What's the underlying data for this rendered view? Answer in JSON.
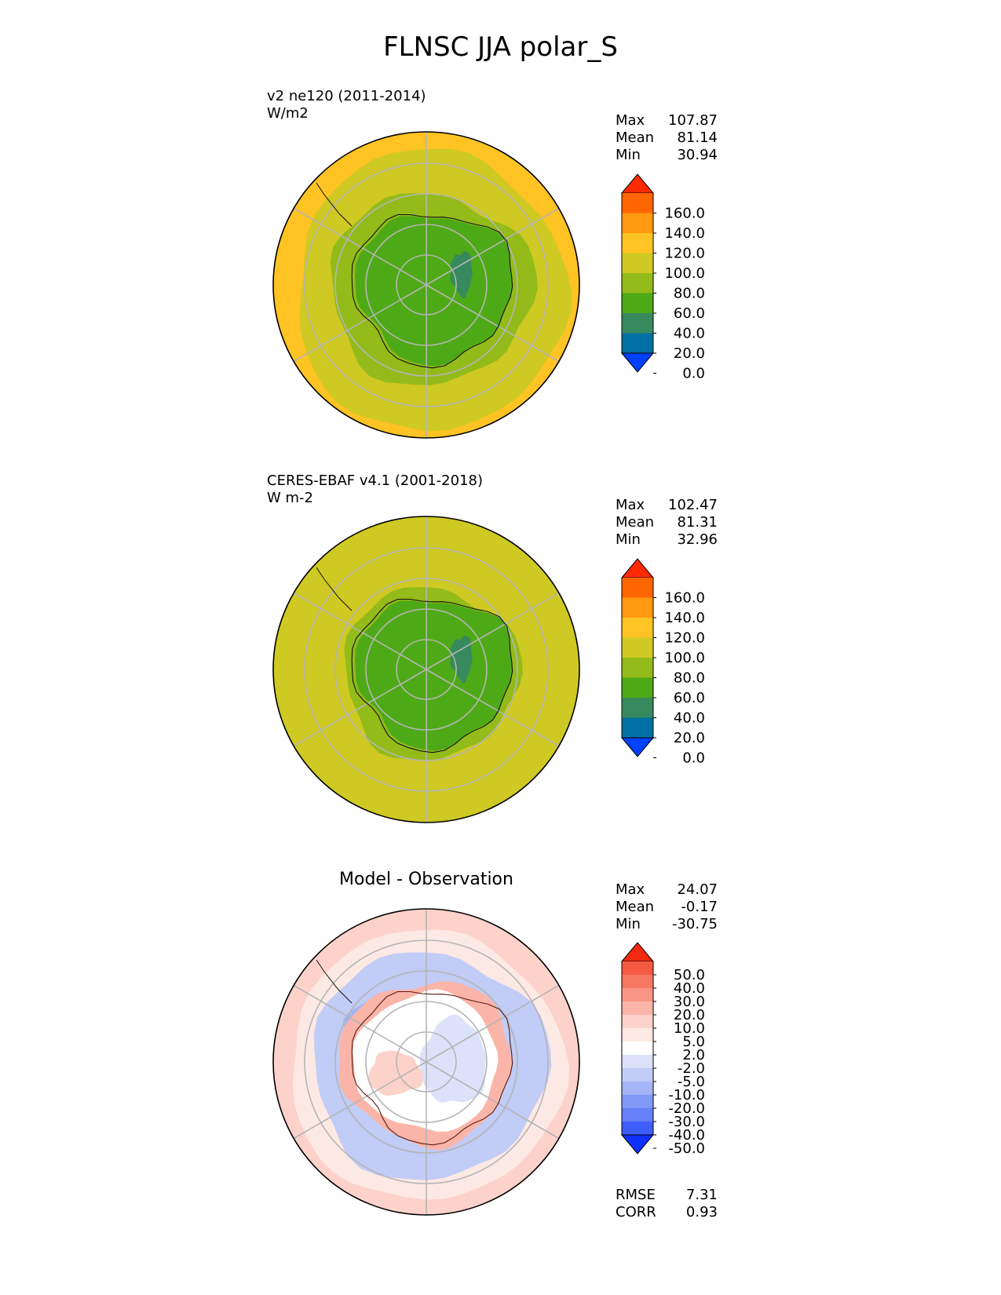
{
  "title": "FLNSC JJA polar_S",
  "panels": [
    {
      "id": "test",
      "title_line1": "v2 ne120 (2011-2014)",
      "title_line2": "W/m2",
      "stats": [
        {
          "label": "Max",
          "value": "107.87"
        },
        {
          "label": "Mean",
          "value": "81.14"
        },
        {
          "label": "Min",
          "value": "30.94"
        }
      ]
    },
    {
      "id": "ref",
      "title_line1": "CERES-EBAF v4.1 (2001-2018)",
      "title_line2": "W m-2",
      "stats": [
        {
          "label": "Max",
          "value": "102.47"
        },
        {
          "label": "Mean",
          "value": "81.31"
        },
        {
          "label": "Min",
          "value": "32.96"
        }
      ]
    },
    {
      "id": "diff",
      "title_center": "Model - Observation",
      "stats": [
        {
          "label": "Max",
          "value": "24.07"
        },
        {
          "label": "Mean",
          "value": "-0.17"
        },
        {
          "label": "Min",
          "value": "-30.75"
        }
      ],
      "extra_stats": [
        {
          "label": "RMSE",
          "value": "7.31"
        },
        {
          "label": "CORR",
          "value": "0.93"
        }
      ]
    }
  ],
  "chart_data": [
    {
      "type": "heatmap",
      "projection": "south polar stereographic",
      "colorbar": {
        "ticks": [
          "160.0",
          "140.0",
          "120.0",
          "100.0",
          "80.0",
          "60.0",
          "40.0",
          "20.0",
          "0.0"
        ],
        "colors": [
          "#ff2a00",
          "#ff6600",
          "#ff9a10",
          "#ffc323",
          "#cfc923",
          "#93bb1a",
          "#4ea916",
          "#378a5d",
          "#0070a4",
          "#0040ff"
        ],
        "extend": "both"
      }
    },
    {
      "type": "heatmap",
      "projection": "south polar stereographic",
      "colorbar": {
        "ticks": [
          "160.0",
          "140.0",
          "120.0",
          "100.0",
          "80.0",
          "60.0",
          "40.0",
          "20.0",
          "0.0"
        ],
        "colors": [
          "#ff2a00",
          "#ff6600",
          "#ff9a10",
          "#ffc323",
          "#cfc923",
          "#93bb1a",
          "#4ea916",
          "#378a5d",
          "#0070a4",
          "#0040ff"
        ],
        "extend": "both"
      }
    },
    {
      "type": "heatmap",
      "projection": "south polar stereographic",
      "colorbar": {
        "ticks": [
          "50.0",
          "40.0",
          "30.0",
          "20.0",
          "10.0",
          "5.0",
          "2.0",
          "-2.0",
          "-5.0",
          "-10.0",
          "-20.0",
          "-30.0",
          "-40.0",
          "-50.0"
        ],
        "colors": [
          "#f42a10",
          "#f55a40",
          "#f77860",
          "#f99585",
          "#fbb5a8",
          "#fdd2ca",
          "#fde9e4",
          "#ffffff",
          "#dce2f9",
          "#c1ccf7",
          "#a4b4f6",
          "#8199f7",
          "#6580f8",
          "#3e5df9",
          "#1030ff"
        ],
        "extend": "both"
      }
    }
  ]
}
